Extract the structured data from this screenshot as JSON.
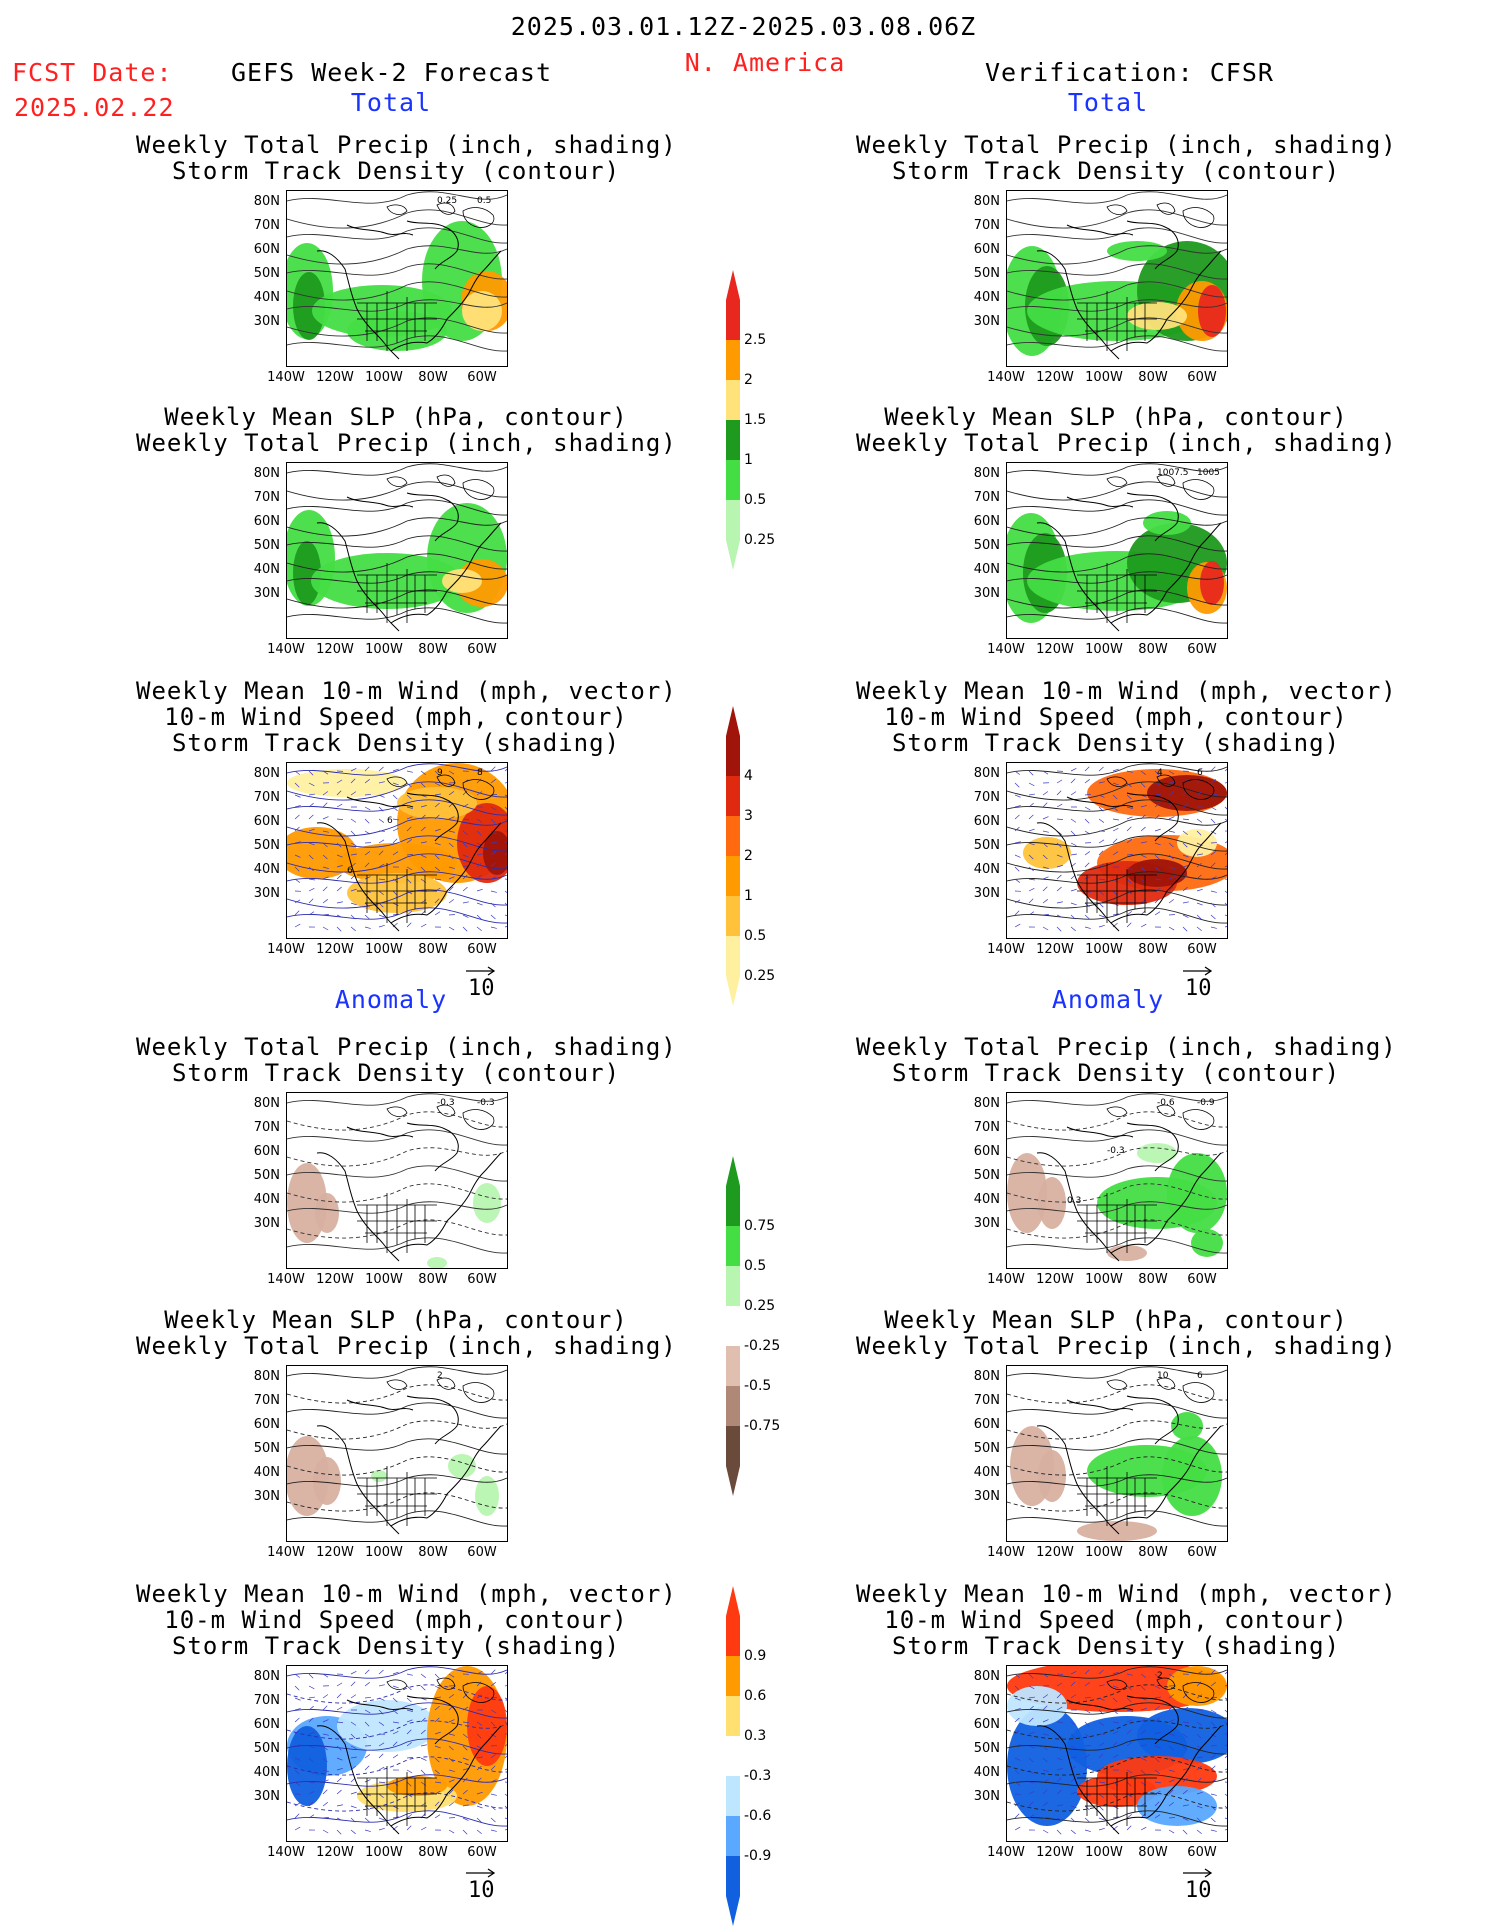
{
  "header": {
    "period": "2025.03.01.12Z-2025.03.08.06Z",
    "region": "N. America",
    "fcst_label": "FCST Date:",
    "fcst_date": "2025.02.22",
    "left_title": "GEFS Week-2 Forecast",
    "right_title": "Verification: CFSR"
  },
  "sections": {
    "total": "Total",
    "anomaly": "Anomaly"
  },
  "panel_titles": {
    "precip_storm": [
      "Weekly Total Precip (inch, shading)",
      "Storm Track Density (contour)"
    ],
    "slp_precip": [
      "Weekly Mean SLP (hPa, contour)",
      "Weekly Total Precip (inch, shading)"
    ],
    "wind_storm": [
      "Weekly Mean 10-m Wind (mph, vector)",
      "10-m Wind Speed (mph, contour)",
      "Storm Track Density (shading)"
    ]
  },
  "axes": {
    "lat": [
      "80N",
      "70N",
      "60N",
      "50N",
      "40N",
      "30N"
    ],
    "lon": [
      "140W",
      "120W",
      "100W",
      "80W",
      "60W"
    ]
  },
  "vector_reference": "10",
  "colorbars": {
    "precip_total": {
      "labels": [
        "2.5",
        "2",
        "1.5",
        "1",
        "0.5",
        "0.25"
      ],
      "colors": [
        "#e8281e",
        "#ff9a00",
        "#ffe27a",
        "#1e9a1e",
        "#44dd44",
        "#b8f5b0"
      ]
    },
    "storm_total": {
      "labels": [
        "4",
        "3",
        "2",
        "1",
        "0.5",
        "0.25"
      ],
      "colors": [
        "#a0140a",
        "#e02a10",
        "#ff6a10",
        "#ff9a00",
        "#ffc23a",
        "#fff0a0"
      ]
    },
    "precip_anom": {
      "labels": [
        "0.75",
        "0.5",
        "0.25",
        "-0.25",
        "-0.5",
        "-0.75"
      ],
      "colors": [
        "#1e9a1e",
        "#44dd44",
        "#b8f5b0",
        "#ffffff",
        "#e0bfb0",
        "#b08878",
        "#6a4a3a"
      ]
    },
    "storm_anom": {
      "labels": [
        "0.9",
        "0.6",
        "0.3",
        "-0.3",
        "-0.6",
        "-0.9"
      ],
      "colors": [
        "#ff3a10",
        "#ff9a00",
        "#ffe070",
        "#ffffff",
        "#bfe6ff",
        "#5aa8ff",
        "#1060e0"
      ]
    }
  },
  "contour_labels": {
    "fcst_precip_total": [
      "0.25",
      "0.5"
    ],
    "obs_slp_total": [
      "1007.5",
      "1005"
    ],
    "fcst_wind_total": [
      "9",
      "8",
      "6",
      "6"
    ],
    "obs_wind_total": [
      "4",
      "6"
    ],
    "fcst_precip_anom": [
      "-0.3",
      "-0.3"
    ],
    "obs_precip_anom": [
      "-0.6",
      "-0.9",
      "-0.3",
      "0.3"
    ],
    "fcst_slp_anom": [
      "2"
    ],
    "obs_slp_anom": [
      "10",
      "6"
    ],
    "obs_wind_anom": [
      "2"
    ]
  }
}
